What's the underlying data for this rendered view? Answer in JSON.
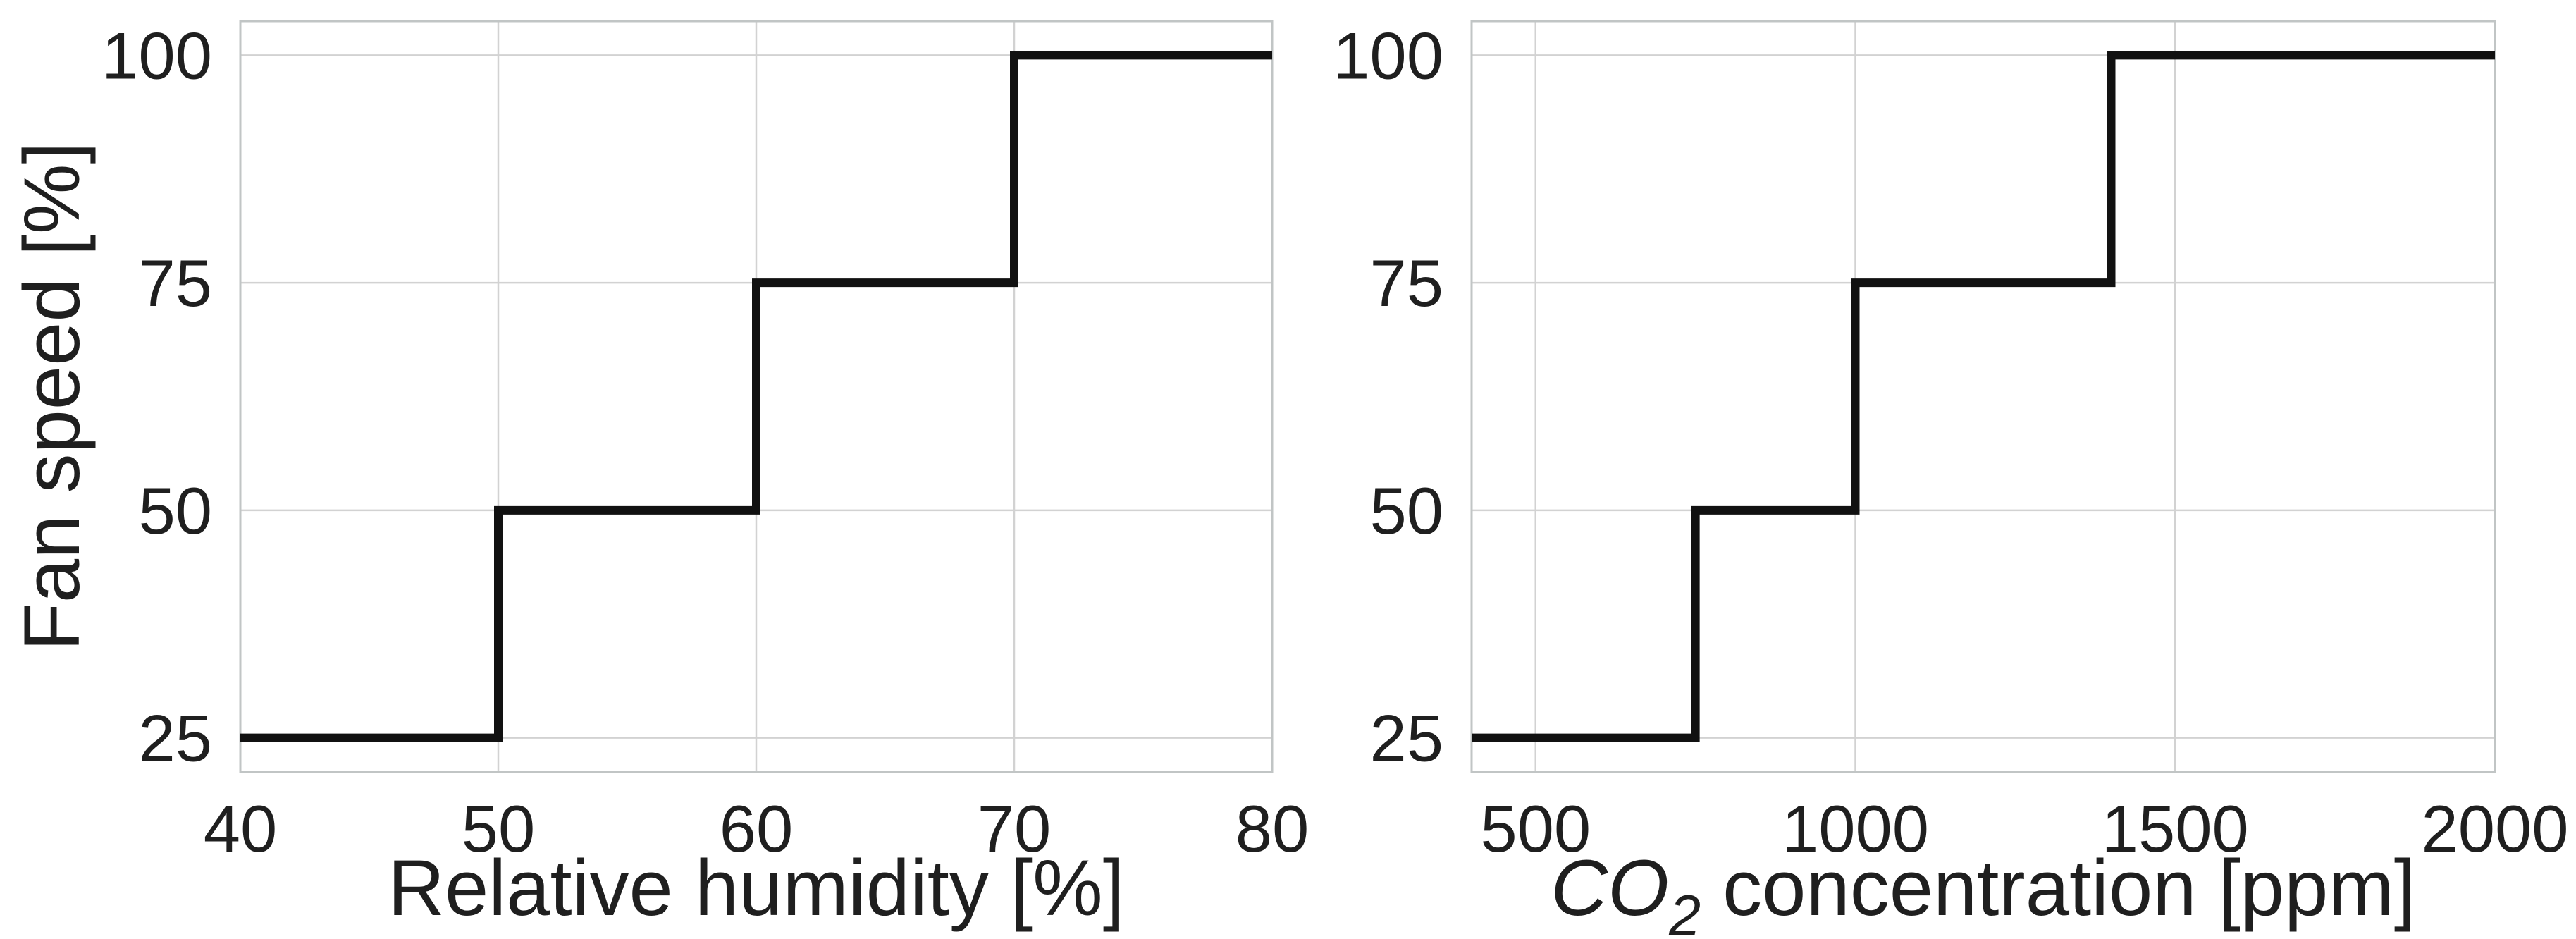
{
  "figure": {
    "background": "#ffffff",
    "line_color": "#111111",
    "grid_color": "#d2d2d2",
    "spine_color": "#c1c5c5",
    "text_color": "#1f1f1f",
    "line_width": 12,
    "grid_width": 2.5,
    "spine_width": 3
  },
  "chart_data": [
    {
      "name": "humidity",
      "type": "line",
      "drawstyle": "steps-post",
      "title": "",
      "xlabel": "Relative humidity [%]",
      "xlabel_parts": [
        {
          "text": "Relative humidity [%]",
          "italic": false,
          "sub": false
        }
      ],
      "ylabel": "Fan speed [%]",
      "xlim": [
        40,
        80
      ],
      "ylim": [
        21.25,
        103.75
      ],
      "xticks": [
        40,
        50,
        60,
        70,
        80
      ],
      "xtick_labels": [
        "40",
        "50",
        "60",
        "70",
        "80"
      ],
      "yticks": [
        25,
        50,
        75,
        100
      ],
      "ytick_labels": [
        "25",
        "50",
        "75",
        "100"
      ],
      "grid": true,
      "legend": null,
      "series": [
        {
          "name": "fan-speed-vs-humidity",
          "x": [
            40,
            50,
            60,
            70,
            80
          ],
          "y": [
            25,
            50,
            75,
            100,
            100
          ]
        }
      ]
    },
    {
      "name": "co2",
      "type": "line",
      "drawstyle": "steps-post",
      "title": "",
      "xlabel": "CO2 concentration [ppm]",
      "xlabel_parts": [
        {
          "text": "CO",
          "italic": true,
          "sub": false
        },
        {
          "text": "2",
          "italic": true,
          "sub": true
        },
        {
          "text": " concentration [ppm]",
          "italic": false,
          "sub": false
        }
      ],
      "ylabel": "",
      "xlim": [
        400,
        2000
      ],
      "ylim": [
        21.25,
        103.75
      ],
      "xticks": [
        500,
        1000,
        1500,
        2000
      ],
      "xtick_labels": [
        "500",
        "1000",
        "1500",
        "2000"
      ],
      "yticks": [
        25,
        50,
        75,
        100
      ],
      "ytick_labels": [
        "25",
        "50",
        "75",
        "100"
      ],
      "grid": true,
      "legend": null,
      "series": [
        {
          "name": "fan-speed-vs-co2",
          "x": [
            400,
            750,
            1000,
            1400,
            2000
          ],
          "y": [
            25,
            50,
            75,
            100,
            100
          ]
        }
      ]
    }
  ]
}
